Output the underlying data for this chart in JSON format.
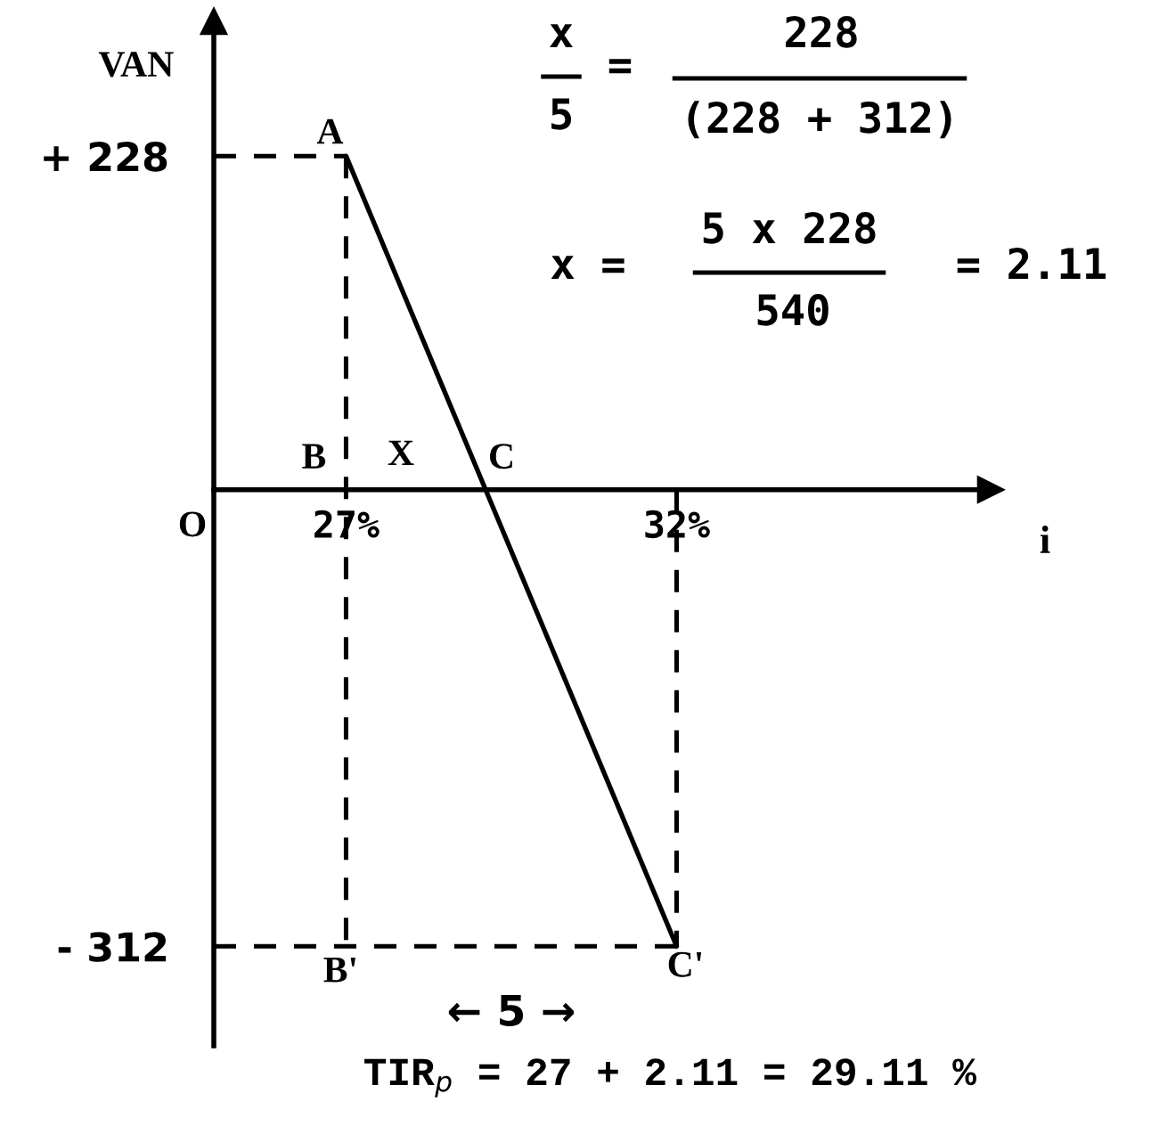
{
  "chart_data": {
    "type": "line",
    "xlabel": "i",
    "ylabel": "VAN",
    "line_style": "solid",
    "series": [
      {
        "x": [
          27,
          32
        ],
        "values": [
          228,
          -312
        ],
        "color": "#000000"
      },
      {
        "x": [
          25,
          27
        ],
        "values": [
          228,
          228
        ],
        "color": "#000000",
        "line_style": "dashed"
      },
      {
        "x": [
          27,
          27
        ],
        "values": [
          228,
          -312
        ],
        "color": "#000000",
        "line_style": "dashed"
      },
      {
        "x": [
          25,
          32
        ],
        "values": [
          -312,
          -312
        ],
        "color": "#000000",
        "line_style": "dashed"
      },
      {
        "x": [
          32,
          32
        ],
        "values": [
          0,
          -312
        ],
        "color": "#000000",
        "line_style": "dashed"
      }
    ],
    "xlim": [
      25,
      36.75
    ],
    "xticks": [
      {
        "value": 27,
        "label": "27%"
      },
      {
        "value": 32,
        "label": "32%"
      }
    ],
    "ylim": [
      -380,
      320
    ],
    "yticks": [
      {
        "value": 228,
        "label": "+ 228"
      },
      {
        "value": -312,
        "label": "- 312"
      }
    ],
    "annotations": [
      "x",
      "5",
      "=",
      "228",
      "(228 + 312)",
      "x =",
      "5 x 228",
      "540",
      "= 2.11",
      "TIR$_{p}$ = 27 + 2.11 = 29.11 %",
      "O",
      "X",
      {
        "text": "A",
        "x": 27,
        "y": 228
      },
      {
        "text": "B",
        "x": 27,
        "y": 0
      },
      {
        "text": "C",
        "x": 29.11,
        "y": 0
      },
      {
        "text": "B'",
        "x": 27,
        "y": -312
      },
      {
        "text": "C'",
        "x": 32,
        "y": -312
      },
      {
        "text": "← 5 →",
        "x": 29.5,
        "y": -312
      }
    ]
  }
}
